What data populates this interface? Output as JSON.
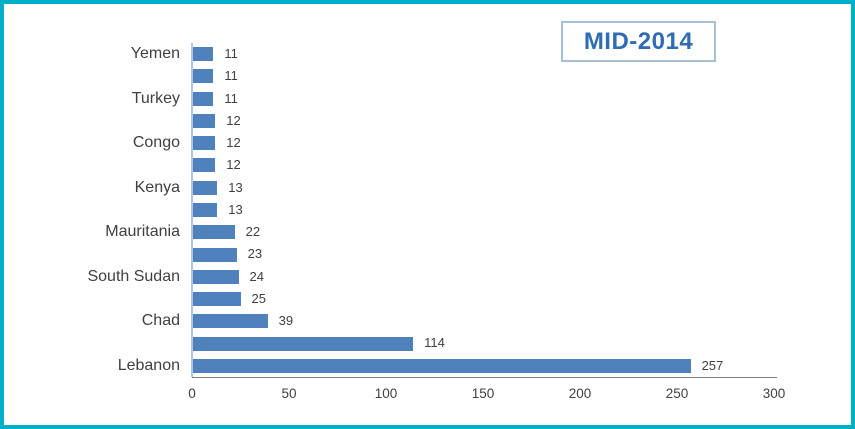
{
  "frame": {
    "border_color": "#00b0c6",
    "background": "#ffffff"
  },
  "title_box": {
    "label": "MID-2014",
    "text_color": "#2e6cb5",
    "border_color": "#a9bfd6"
  },
  "chart_data": {
    "type": "bar",
    "orientation": "horizontal",
    "title": "MID-2014",
    "xlabel": "",
    "ylabel": "",
    "categories": [
      "Yemen",
      "",
      "Turkey",
      "",
      "Congo",
      "",
      "Kenya",
      "",
      "Mauritania",
      "",
      "South Sudan",
      "",
      "Chad",
      "",
      "Lebanon"
    ],
    "values": [
      11,
      11,
      11,
      12,
      12,
      12,
      13,
      13,
      22,
      23,
      24,
      25,
      39,
      114,
      257
    ],
    "value_labels_shown": true,
    "xlim": [
      0,
      300
    ],
    "x_ticks": [
      0,
      50,
      100,
      150,
      200,
      250,
      300
    ],
    "grid": false,
    "legend": "none",
    "bar_color": "#4f81bd",
    "axis_line_color": "#7f7f7f",
    "category_axis_line_color": "#aec6e2",
    "text_color": "#404040"
  }
}
